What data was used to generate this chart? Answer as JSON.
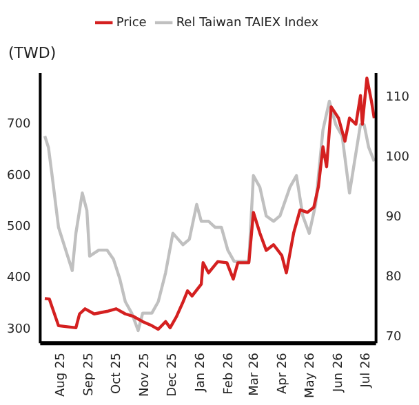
{
  "chart_data": {
    "type": "line",
    "ylabel": "(TWD)",
    "legend": "top",
    "marker": "none",
    "line_style": "solid",
    "xlim": [
      "2025-07-12",
      "2026-07-14"
    ],
    "xticks": [
      {
        "value": "2025-08-01",
        "label": "Aug 25"
      },
      {
        "value": "2025-09-01",
        "label": "Sep 25"
      },
      {
        "value": "2025-10-01",
        "label": "Oct 25"
      },
      {
        "value": "2025-11-01",
        "label": "Nov 25"
      },
      {
        "value": "2025-12-01",
        "label": "Dec 25"
      },
      {
        "value": "2026-01-01",
        "label": "Jan 26"
      },
      {
        "value": "2026-02-01",
        "label": "Feb 26"
      },
      {
        "value": "2026-03-01",
        "label": "Mar 26"
      },
      {
        "value": "2026-04-01",
        "label": "Apr 26"
      },
      {
        "value": "2026-05-01",
        "label": "May 26"
      },
      {
        "value": "2026-06-01",
        "label": "Jun 26"
      },
      {
        "value": "2026-07-01",
        "label": "Jul 26"
      }
    ],
    "ylim": [
      273,
      800
    ],
    "yticks": [
      300,
      400,
      500,
      600,
      700
    ],
    "y2lim": [
      69,
      114
    ],
    "y2ticks": [
      70,
      80,
      90,
      100,
      110
    ],
    "series": [
      {
        "name": "Rel Taiwan TAIEX Index",
        "color": "#c0c0c0",
        "axis": "y2",
        "x": [
          "2025-07-17",
          "2025-07-21",
          "2025-07-25",
          "2025-08-01",
          "2025-08-11",
          "2025-08-16",
          "2025-08-20",
          "2025-08-27",
          "2025-09-01",
          "2025-09-04",
          "2025-09-14",
          "2025-09-23",
          "2025-09-30",
          "2025-10-07",
          "2025-10-13",
          "2025-10-20",
          "2025-10-27",
          "2025-11-01",
          "2025-11-11",
          "2025-11-18",
          "2025-11-26",
          "2025-12-04",
          "2025-12-15",
          "2025-12-22",
          "2025-12-30",
          "2026-01-04",
          "2026-01-09",
          "2026-01-12",
          "2026-01-19",
          "2026-01-26",
          "2026-02-02",
          "2026-02-09",
          "2026-02-25",
          "2026-03-02",
          "2026-03-09",
          "2026-03-16",
          "2026-03-24",
          "2026-03-31",
          "2026-04-11",
          "2026-04-18",
          "2026-04-25",
          "2026-05-02",
          "2026-05-09",
          "2026-05-17",
          "2026-05-24",
          "2026-05-31",
          "2026-06-07",
          "2026-06-15",
          "2026-06-19",
          "2026-06-27",
          "2026-07-01",
          "2026-07-06",
          "2026-07-12"
        ],
        "values": [
          103.5,
          101.6,
          96.9,
          88.3,
          83.5,
          81.1,
          87.3,
          94,
          91.1,
          83.5,
          84.5,
          84.5,
          83,
          79.7,
          75.9,
          74,
          71.1,
          74,
          74,
          75.9,
          80.7,
          87.3,
          85.4,
          86.3,
          92.1,
          89.3,
          89.3,
          89.3,
          88.3,
          88.3,
          84.5,
          82.6,
          82.6,
          96.9,
          95,
          90.2,
          89.3,
          90.2,
          95,
          96.9,
          90.2,
          87.3,
          92.1,
          104.5,
          109.3,
          105.4,
          103.5,
          94,
          97.8,
          105.4,
          105.4,
          101.6,
          99.3
        ]
      },
      {
        "name": "Price",
        "color": "#d42020",
        "axis": "y",
        "x": [
          "2025-07-17",
          "2025-07-22",
          "2025-08-01",
          "2025-08-20",
          "2025-08-24",
          "2025-08-30",
          "2025-09-09",
          "2025-09-23",
          "2025-10-03",
          "2025-10-13",
          "2025-10-22",
          "2025-11-01",
          "2025-11-11",
          "2025-11-18",
          "2025-11-26",
          "2025-12-01",
          "2025-12-08",
          "2025-12-15",
          "2025-12-20",
          "2025-12-25",
          "2026-01-04",
          "2026-01-06",
          "2026-01-12",
          "2026-01-22",
          "2026-02-01",
          "2026-02-08",
          "2026-02-13",
          "2026-02-25",
          "2026-03-02",
          "2026-03-09",
          "2026-03-16",
          "2026-03-24",
          "2026-04-02",
          "2026-04-07",
          "2026-04-15",
          "2026-04-22",
          "2026-04-30",
          "2026-05-07",
          "2026-05-12",
          "2026-05-17",
          "2026-05-21",
          "2026-05-26",
          "2026-06-03",
          "2026-06-10",
          "2026-06-15",
          "2026-06-22",
          "2026-06-27",
          "2026-06-29",
          "2026-07-04",
          "2026-07-09",
          "2026-07-12"
        ],
        "values": [
          360,
          359,
          307,
          303,
          330,
          340,
          330,
          335,
          340,
          330,
          325,
          315,
          307,
          300,
          315,
          303,
          325,
          353,
          375,
          365,
          388,
          430,
          410,
          432,
          430,
          398,
          430,
          430,
          528,
          488,
          454,
          465,
          444,
          410,
          488,
          533,
          528,
          538,
          578,
          656,
          617,
          734,
          712,
          667,
          712,
          700,
          756,
          700,
          790,
          745,
          712
        ]
      }
    ]
  }
}
